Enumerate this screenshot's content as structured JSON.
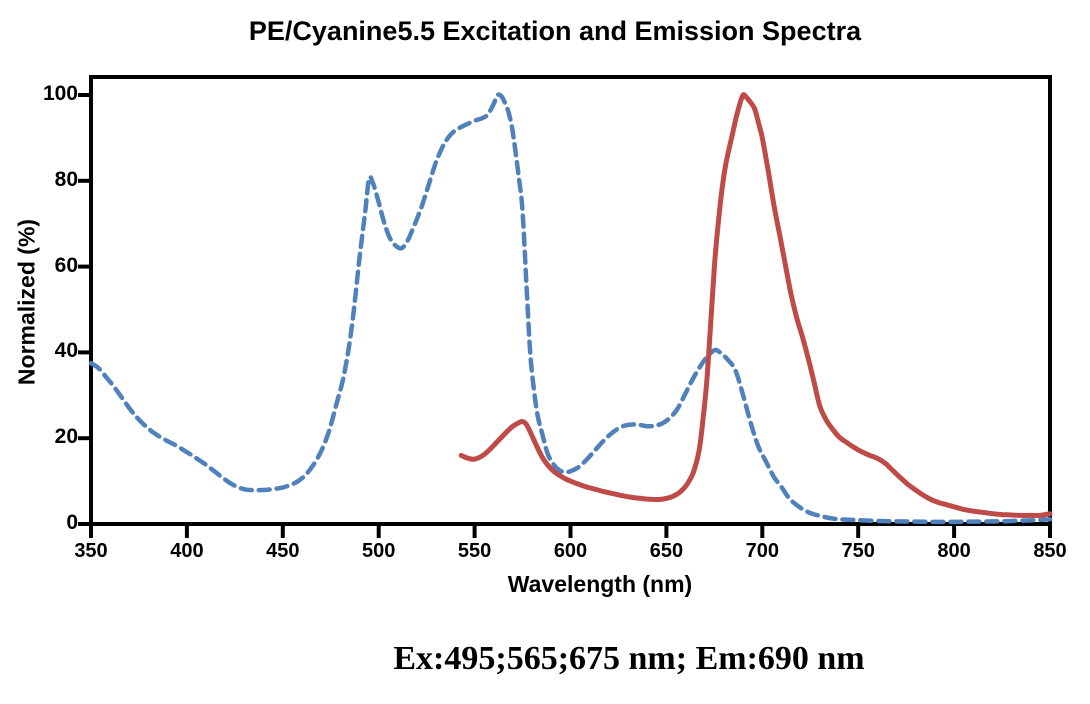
{
  "figure": {
    "background": "#ffffff",
    "axis_color": "#000000",
    "annotation": "Ex:495;565;675 nm; Em:690 nm"
  },
  "chart_data": {
    "type": "line",
    "title": "PE/Cyanine5.5 Excitation and Emission Spectra",
    "xlabel": "Wavelength (nm)",
    "ylabel": "Normalized (%)",
    "xlim": [
      350,
      850
    ],
    "ylim": [
      0,
      104
    ],
    "x_ticks": [
      350,
      400,
      450,
      500,
      550,
      600,
      650,
      700,
      750,
      800,
      850
    ],
    "y_ticks": [
      0,
      20,
      40,
      60,
      80,
      100
    ],
    "grid": false,
    "legend_position": "none",
    "series": [
      {
        "name": "Excitation",
        "line_style": "dashed",
        "color": "#4F81BD",
        "peaks_nm": [
          495,
          565,
          675
        ],
        "points": [
          [
            350,
            37.5
          ],
          [
            354,
            36.3
          ],
          [
            358,
            34.2
          ],
          [
            362,
            32
          ],
          [
            366,
            29.5
          ],
          [
            370,
            27
          ],
          [
            374,
            24.8
          ],
          [
            378,
            23
          ],
          [
            382,
            21.5
          ],
          [
            386,
            20.3
          ],
          [
            390,
            19.3
          ],
          [
            394,
            18.4
          ],
          [
            398,
            17.3
          ],
          [
            402,
            16.2
          ],
          [
            406,
            15
          ],
          [
            410,
            13.8
          ],
          [
            414,
            12.4
          ],
          [
            418,
            11
          ],
          [
            422,
            9.7
          ],
          [
            426,
            8.7
          ],
          [
            430,
            8.1
          ],
          [
            434,
            7.9
          ],
          [
            438,
            7.9
          ],
          [
            442,
            8
          ],
          [
            446,
            8.2
          ],
          [
            450,
            8.5
          ],
          [
            454,
            9.1
          ],
          [
            458,
            10
          ],
          [
            462,
            11.5
          ],
          [
            466,
            13.8
          ],
          [
            470,
            17
          ],
          [
            474,
            21.5
          ],
          [
            478,
            28
          ],
          [
            482,
            35
          ],
          [
            486,
            46
          ],
          [
            490,
            62
          ],
          [
            493,
            73
          ],
          [
            495,
            80.5
          ],
          [
            497,
            79.5
          ],
          [
            500,
            75
          ],
          [
            503,
            70
          ],
          [
            506,
            66.5
          ],
          [
            509,
            64.8
          ],
          [
            512,
            64.3
          ],
          [
            515,
            66
          ],
          [
            518,
            69
          ],
          [
            522,
            73.5
          ],
          [
            526,
            79
          ],
          [
            530,
            84.5
          ],
          [
            534,
            88.5
          ],
          [
            538,
            91
          ],
          [
            542,
            92.3
          ],
          [
            546,
            93.2
          ],
          [
            550,
            94
          ],
          [
            554,
            94.6
          ],
          [
            557,
            95.5
          ],
          [
            560,
            98
          ],
          [
            562,
            100
          ],
          [
            564,
            99.7
          ],
          [
            566,
            98
          ],
          [
            568,
            95.5
          ],
          [
            570,
            91
          ],
          [
            573,
            81
          ],
          [
            575,
            73
          ],
          [
            577,
            56
          ],
          [
            579,
            40
          ],
          [
            581,
            31
          ],
          [
            583,
            25
          ],
          [
            585,
            21.5
          ],
          [
            588,
            16.5
          ],
          [
            591,
            14
          ],
          [
            594,
            12.6
          ],
          [
            597,
            12.1
          ],
          [
            600,
            12.3
          ],
          [
            604,
            13.2
          ],
          [
            608,
            14.8
          ],
          [
            612,
            16.8
          ],
          [
            616,
            18.8
          ],
          [
            620,
            20.6
          ],
          [
            624,
            22
          ],
          [
            628,
            22.9
          ],
          [
            632,
            23.2
          ],
          [
            636,
            23.1
          ],
          [
            640,
            22.8
          ],
          [
            644,
            22.9
          ],
          [
            648,
            23.5
          ],
          [
            652,
            24.8
          ],
          [
            656,
            27
          ],
          [
            660,
            30.5
          ],
          [
            664,
            34
          ],
          [
            668,
            37
          ],
          [
            671,
            38.8
          ],
          [
            675,
            40.5
          ],
          [
            678,
            40
          ],
          [
            682,
            38.3
          ],
          [
            686,
            35.8
          ],
          [
            690,
            30
          ],
          [
            694,
            23.5
          ],
          [
            698,
            18
          ],
          [
            702,
            14.5
          ],
          [
            706,
            11
          ],
          [
            710,
            8.6
          ],
          [
            714,
            6
          ],
          [
            718,
            4.4
          ],
          [
            722,
            3.2
          ],
          [
            726,
            2.4
          ],
          [
            730,
            1.9
          ],
          [
            735,
            1.4
          ],
          [
            740,
            1.1
          ],
          [
            745,
            1
          ],
          [
            750,
            0.9
          ],
          [
            760,
            0.7
          ],
          [
            770,
            0.6
          ],
          [
            780,
            0.55
          ],
          [
            790,
            0.5
          ],
          [
            800,
            0.5
          ],
          [
            810,
            0.55
          ],
          [
            820,
            0.6
          ],
          [
            830,
            0.7
          ],
          [
            840,
            0.85
          ],
          [
            850,
            1.1
          ]
        ]
      },
      {
        "name": "Emission",
        "line_style": "solid",
        "color": "#BE4B48",
        "peaks_nm": [
          690
        ],
        "points": [
          [
            543,
            16
          ],
          [
            546,
            15.4
          ],
          [
            549,
            15.1
          ],
          [
            552,
            15.4
          ],
          [
            555,
            16.2
          ],
          [
            558,
            17.4
          ],
          [
            561,
            18.8
          ],
          [
            564,
            20.2
          ],
          [
            567,
            21.6
          ],
          [
            570,
            22.8
          ],
          [
            573,
            23.6
          ],
          [
            575,
            23.9
          ],
          [
            577,
            23.2
          ],
          [
            579,
            21.5
          ],
          [
            582,
            18.5
          ],
          [
            585,
            15.8
          ],
          [
            588,
            13.8
          ],
          [
            591,
            12.4
          ],
          [
            594,
            11.4
          ],
          [
            597,
            10.6
          ],
          [
            600,
            10
          ],
          [
            604,
            9.3
          ],
          [
            608,
            8.7
          ],
          [
            612,
            8.2
          ],
          [
            616,
            7.7
          ],
          [
            620,
            7.3
          ],
          [
            624,
            6.9
          ],
          [
            628,
            6.5
          ],
          [
            632,
            6.2
          ],
          [
            636,
            6
          ],
          [
            640,
            5.8
          ],
          [
            644,
            5.7
          ],
          [
            648,
            5.8
          ],
          [
            652,
            6.2
          ],
          [
            655,
            6.8
          ],
          [
            658,
            7.8
          ],
          [
            661,
            9.4
          ],
          [
            664,
            12
          ],
          [
            667,
            17
          ],
          [
            669,
            24
          ],
          [
            671,
            33
          ],
          [
            673,
            46
          ],
          [
            675,
            60
          ],
          [
            677,
            70
          ],
          [
            679,
            78
          ],
          [
            681,
            84
          ],
          [
            684,
            90
          ],
          [
            686,
            94
          ],
          [
            688,
            97.5
          ],
          [
            690,
            100
          ],
          [
            692,
            99.3
          ],
          [
            694,
            98.2
          ],
          [
            696,
            96.8
          ],
          [
            698,
            93.5
          ],
          [
            700,
            90
          ],
          [
            703,
            82.5
          ],
          [
            706,
            74.5
          ],
          [
            709,
            67.5
          ],
          [
            712,
            60.5
          ],
          [
            715,
            53.5
          ],
          [
            718,
            48
          ],
          [
            721,
            43.5
          ],
          [
            724,
            38.5
          ],
          [
            727,
            33
          ],
          [
            730,
            27.5
          ],
          [
            733,
            24.5
          ],
          [
            736,
            22.5
          ],
          [
            740,
            20.3
          ],
          [
            744,
            19
          ],
          [
            748,
            17.8
          ],
          [
            752,
            16.8
          ],
          [
            756,
            16
          ],
          [
            760,
            15.3
          ],
          [
            764,
            14.2
          ],
          [
            768,
            12.5
          ],
          [
            772,
            10.8
          ],
          [
            776,
            9.2
          ],
          [
            780,
            7.9
          ],
          [
            784,
            6.7
          ],
          [
            788,
            5.7
          ],
          [
            792,
            5
          ],
          [
            796,
            4.5
          ],
          [
            800,
            4
          ],
          [
            805,
            3.4
          ],
          [
            810,
            3
          ],
          [
            815,
            2.7
          ],
          [
            820,
            2.4
          ],
          [
            825,
            2.2
          ],
          [
            830,
            2.1
          ],
          [
            835,
            2
          ],
          [
            840,
            2
          ],
          [
            845,
            2
          ],
          [
            850,
            2.4
          ]
        ]
      }
    ]
  }
}
